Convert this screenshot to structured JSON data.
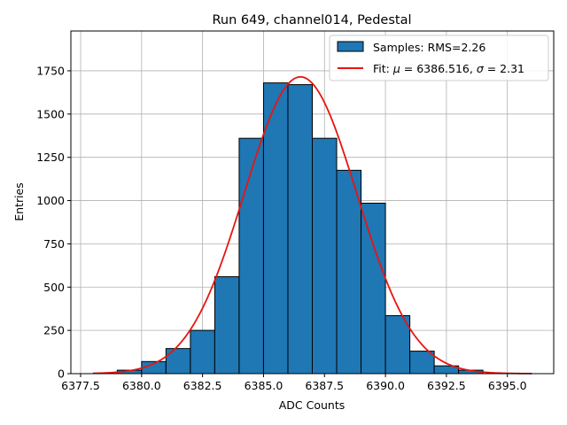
{
  "chart_data": {
    "type": "bar",
    "title": "Run 649, channel014, Pedestal",
    "xlabel": "ADC Counts",
    "ylabel": "Entries",
    "xlim": [
      6377.1,
      6396.9
    ],
    "ylim": [
      0,
      1980
    ],
    "grid": true,
    "legend_position": "top-right",
    "x_ticks": [
      6377.5,
      6380.0,
      6382.5,
      6385.0,
      6387.5,
      6390.0,
      6392.5,
      6395.0
    ],
    "x_tick_labels": [
      "6377.5",
      "6380.0",
      "6382.5",
      "6385.0",
      "6387.5",
      "6390.0",
      "6392.5",
      "6395.0"
    ],
    "y_ticks": [
      0,
      250,
      500,
      750,
      1000,
      1250,
      1500,
      1750
    ],
    "y_tick_labels": [
      "0",
      "250",
      "500",
      "750",
      "1000",
      "1250",
      "1500",
      "1750"
    ],
    "histogram": {
      "name": "Samples: RMS=2.26",
      "color": "#1f77b4",
      "edge_color": "#000000",
      "bins": [
        {
          "x0": 6379.0,
          "x1": 6380.0,
          "count": 20
        },
        {
          "x0": 6380.0,
          "x1": 6381.0,
          "count": 70
        },
        {
          "x0": 6381.0,
          "x1": 6382.0,
          "count": 145
        },
        {
          "x0": 6382.0,
          "x1": 6383.0,
          "count": 250
        },
        {
          "x0": 6383.0,
          "x1": 6384.0,
          "count": 560
        },
        {
          "x0": 6384.0,
          "x1": 6385.0,
          "count": 1360
        },
        {
          "x0": 6385.0,
          "x1": 6386.0,
          "count": 1680
        },
        {
          "x0": 6386.0,
          "x1": 6387.0,
          "count": 1670
        },
        {
          "x0": 6387.0,
          "x1": 6388.0,
          "count": 1360
        },
        {
          "x0": 6388.0,
          "x1": 6389.0,
          "count": 1175
        },
        {
          "x0": 6389.0,
          "x1": 6390.0,
          "count": 985
        },
        {
          "x0": 6390.0,
          "x1": 6391.0,
          "count": 335
        },
        {
          "x0": 6391.0,
          "x1": 6392.0,
          "count": 130
        },
        {
          "x0": 6392.0,
          "x1": 6393.0,
          "count": 45
        },
        {
          "x0": 6393.0,
          "x1": 6394.0,
          "count": 20
        }
      ]
    },
    "fit": {
      "name": "Fit: μ = 6386.516, σ = 2.31",
      "label_prefix": "Fit: ",
      "mu_symbol": "μ",
      "mu_text": " = 6386.516, ",
      "sigma_symbol": "σ",
      "sigma_text": " = 2.31",
      "color": "#e8150f",
      "mu": 6386.516,
      "sigma": 2.31,
      "amplitude": 1715,
      "x_range": [
        6378.0,
        6396.0
      ]
    }
  }
}
